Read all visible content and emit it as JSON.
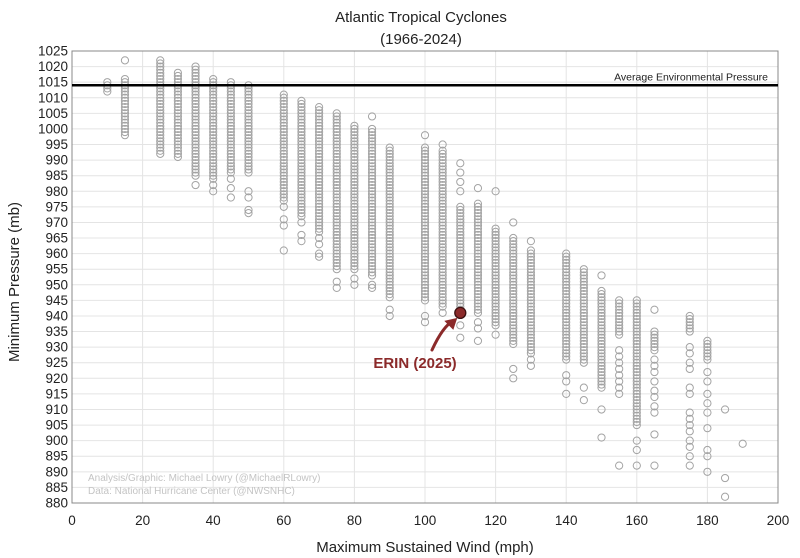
{
  "chart_data": {
    "type": "scatter",
    "title": "Atlantic Tropical Cyclones",
    "subtitle": "(1966-2024)",
    "xlabel": "Maximum Sustained Wind (mph)",
    "ylabel": "Minimum Pressure (mb)",
    "xlim": [
      0,
      200
    ],
    "ylim": [
      880,
      1025
    ],
    "x_ticks": [
      0,
      20,
      40,
      60,
      80,
      100,
      120,
      140,
      160,
      180,
      200
    ],
    "y_ticks": [
      880,
      885,
      890,
      895,
      900,
      905,
      910,
      915,
      920,
      925,
      930,
      935,
      940,
      945,
      950,
      955,
      960,
      965,
      970,
      975,
      980,
      985,
      990,
      995,
      1000,
      1005,
      1010,
      1015,
      1020,
      1025
    ],
    "grid": true,
    "reference_line": {
      "y": 1014,
      "label": "Average Environmental Pressure",
      "color": "#000000"
    },
    "columns": [
      {
        "x": 10,
        "top": 1015,
        "bottom": 1012,
        "extra": []
      },
      {
        "x": 15,
        "top": 1016,
        "bottom": 999,
        "extra": [
          1022,
          998
        ]
      },
      {
        "x": 25,
        "top": 1022,
        "bottom": 992,
        "extra": []
      },
      {
        "x": 30,
        "top": 1018,
        "bottom": 991,
        "extra": []
      },
      {
        "x": 35,
        "top": 1020,
        "bottom": 986,
        "extra": [
          985,
          982
        ]
      },
      {
        "x": 40,
        "top": 1016,
        "bottom": 984,
        "extra": [
          982,
          980
        ]
      },
      {
        "x": 45,
        "top": 1015,
        "bottom": 986,
        "extra": [
          984,
          981,
          978
        ]
      },
      {
        "x": 50,
        "top": 1014,
        "bottom": 986,
        "extra": [
          980,
          978,
          974,
          973
        ]
      },
      {
        "x": 60,
        "top": 1011,
        "bottom": 977,
        "extra": [
          975,
          971,
          969,
          961
        ]
      },
      {
        "x": 65,
        "top": 1009,
        "bottom": 972,
        "extra": [
          970,
          966,
          964
        ]
      },
      {
        "x": 70,
        "top": 1007,
        "bottom": 967,
        "extra": [
          965,
          963,
          960,
          959
        ]
      },
      {
        "x": 75,
        "top": 1005,
        "bottom": 955,
        "extra": [
          951,
          949
        ]
      },
      {
        "x": 80,
        "top": 1001,
        "bottom": 955,
        "extra": [
          952,
          950
        ]
      },
      {
        "x": 85,
        "top": 1000,
        "bottom": 953,
        "extra": [
          1004,
          950,
          949
        ]
      },
      {
        "x": 90,
        "top": 994,
        "bottom": 946,
        "extra": [
          942,
          940
        ]
      },
      {
        "x": 100,
        "top": 994,
        "bottom": 945,
        "extra": [
          998,
          940,
          938
        ]
      },
      {
        "x": 105,
        "top": 993,
        "bottom": 943,
        "extra": [
          995,
          941
        ]
      },
      {
        "x": 110,
        "top": 975,
        "bottom": 942,
        "extra": [
          989,
          986,
          983,
          980,
          937,
          933
        ]
      },
      {
        "x": 115,
        "top": 976,
        "bottom": 941,
        "extra": [
          981,
          938,
          936,
          932
        ]
      },
      {
        "x": 120,
        "top": 968,
        "bottom": 937,
        "extra": [
          980,
          934
        ]
      },
      {
        "x": 125,
        "top": 965,
        "bottom": 931,
        "extra": [
          970,
          923,
          920
        ]
      },
      {
        "x": 130,
        "top": 961,
        "bottom": 928,
        "extra": [
          964,
          926,
          924
        ]
      },
      {
        "x": 140,
        "top": 960,
        "bottom": 926,
        "extra": [
          921,
          919,
          915
        ]
      },
      {
        "x": 145,
        "top": 955,
        "bottom": 925,
        "extra": [
          917,
          913
        ]
      },
      {
        "x": 150,
        "top": 948,
        "bottom": 917,
        "extra": [
          953,
          910,
          901
        ]
      },
      {
        "x": 155,
        "top": 945,
        "bottom": 934,
        "extra": [
          929,
          927,
          925,
          923,
          921,
          919,
          917,
          915,
          892
        ]
      },
      {
        "x": 160,
        "top": 945,
        "bottom": 905,
        "extra": [
          900,
          897,
          892
        ]
      },
      {
        "x": 165,
        "top": 935,
        "bottom": 929,
        "extra": [
          942,
          926,
          924,
          922,
          919,
          916,
          914,
          911,
          909,
          902,
          892
        ]
      },
      {
        "x": 175,
        "top": 940,
        "bottom": 935,
        "extra": [
          930,
          928,
          925,
          923,
          917,
          915,
          909,
          907,
          905,
          903,
          900,
          898,
          895,
          892
        ]
      },
      {
        "x": 180,
        "top": 932,
        "bottom": 927,
        "extra": [
          926,
          922,
          919,
          915,
          912,
          909,
          904,
          897,
          895,
          890
        ]
      },
      {
        "x": 185,
        "top": 910,
        "bottom": 910,
        "extra": [
          888,
          882
        ]
      },
      {
        "x": 190,
        "top": 899,
        "bottom": 899,
        "extra": []
      }
    ],
    "highlight": {
      "label": "ERIN (2025)",
      "x": 110,
      "y": 941,
      "color": "#8b2a2a"
    },
    "credits": [
      "Analysis/Graphic: Michael Lowry (@MichaelRLowry)",
      "Data: National Hurricane Center (@NWSNHC)"
    ]
  }
}
